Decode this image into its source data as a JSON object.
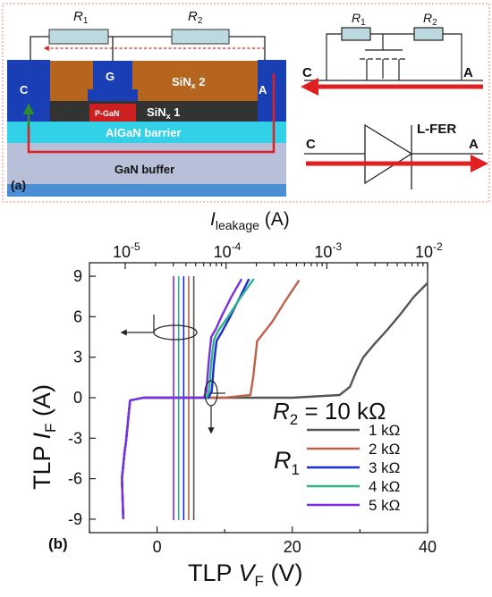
{
  "panel_a": {
    "label": "(a)",
    "device": {
      "r1": "R",
      "r1_sub": "1",
      "r2": "R",
      "r2_sub": "2",
      "cathode": "C",
      "anode": "A",
      "gate": "G",
      "sinx2_main": "SiN",
      "sinx2_sub": "x",
      "sinx2_num": " 2",
      "sinx1_main": "SiN",
      "sinx1_sub": "x",
      "sinx1_num": " 1",
      "pgan": "P-GaN",
      "algan": "AlGaN barrier",
      "gan": "GaN buffer",
      "colors": {
        "electrode": "#1a3fb4",
        "sinx2": "#b5651d",
        "sinx1": "#333333",
        "pgan": "#cc1f1f",
        "algan": "#33d1e8",
        "gan": "#b8bfd8",
        "substrate": "#4a8fd6",
        "current": "#e02020",
        "current_up": "#2e8b2e"
      }
    },
    "circuit": {
      "r1": "R",
      "r1_sub": "1",
      "r2": "R",
      "r2_sub": "2",
      "c": "C",
      "a": "A"
    },
    "diode": {
      "name": "L-FER",
      "c": "C",
      "a": "A"
    }
  },
  "panel_b": {
    "label": "(b)",
    "chart_data": {
      "type": "line",
      "xlabel_main": "TLP ",
      "xlabel_var": "V",
      "xlabel_sub": "F",
      "xlabel_unit": " (V)",
      "ylabel_main": "TLP ",
      "ylabel_var": "I",
      "ylabel_sub": "F",
      "ylabel_unit": " (A)",
      "top_axis_label_var": "I",
      "top_axis_label_sub": "leakage",
      "top_axis_label_unit": " (A)",
      "xlim": [
        -10,
        40
      ],
      "ylim": [
        -10,
        10
      ],
      "x_ticks": [
        "0",
        "20",
        "40"
      ],
      "y_ticks": [
        "9",
        "6",
        "3",
        "0",
        "-3",
        "-6",
        "-9"
      ],
      "top_ticks": [
        {
          "base": "10",
          "exp": "-5"
        },
        {
          "base": "10",
          "exp": "-4"
        },
        {
          "base": "10",
          "exp": "-3"
        },
        {
          "base": "10",
          "exp": "-2"
        }
      ],
      "legend_title_var": "R",
      "legend_title_sub": "2",
      "legend_title_value": " = 10 kΩ",
      "legend_group_var": "R",
      "legend_group_sub": "1",
      "series": [
        {
          "name": "1 kΩ",
          "color": "#555555",
          "x": [
            -5,
            -5.2,
            -4.8,
            -4.6,
            -4,
            -2,
            0,
            10,
            20,
            27,
            28.5,
            29.5,
            30.5,
            32,
            34,
            36,
            38,
            40
          ],
          "y": [
            -9,
            -6,
            -4,
            -3.3,
            -0.2,
            0,
            0,
            0,
            0,
            0.2,
            0.8,
            2,
            3,
            3.9,
            5,
            6.2,
            7.5,
            8.5
          ]
        },
        {
          "name": "2 kΩ",
          "color": "#c0604a",
          "x": [
            -5,
            -5.2,
            -4.8,
            -4.6,
            -4,
            -2,
            0,
            10,
            13.8,
            14.2,
            14.8,
            15.6,
            17,
            19,
            21
          ],
          "y": [
            -9,
            -6,
            -4,
            -3.3,
            -0.2,
            0,
            0,
            0,
            0.2,
            1.5,
            4.2,
            4.7,
            5.6,
            7.2,
            8.7
          ]
        },
        {
          "name": "3 kΩ",
          "color": "#1b2bd6",
          "x": [
            -5,
            -5.2,
            -4.8,
            -4.6,
            -4,
            -2,
            0,
            7.6,
            8.1,
            8.4,
            8.8,
            9.5,
            10.6,
            12,
            13.6
          ],
          "y": [
            -9,
            -6,
            -4,
            -3.3,
            -0.2,
            0,
            0,
            0,
            0.5,
            2.5,
            4.2,
            4.8,
            5.8,
            7.2,
            8.8
          ]
        },
        {
          "name": "4 kΩ",
          "color": "#2fb38a",
          "x": [
            -5,
            -5.2,
            -4.8,
            -4.6,
            -4,
            -2,
            0,
            7.3,
            7.7,
            8,
            8.4,
            9.1,
            10.5,
            12.3,
            14.3
          ],
          "y": [
            -9,
            -6,
            -4,
            -3.3,
            -0.2,
            0,
            0,
            0,
            0.5,
            2.5,
            4.3,
            5,
            6,
            7.4,
            8.8
          ]
        },
        {
          "name": "5 kΩ",
          "color": "#7b2fe0",
          "x": [
            -5,
            -5.2,
            -4.8,
            -4.6,
            -4,
            -2,
            0,
            6.9,
            7.3,
            7.6,
            8,
            8.7,
            9.6,
            11,
            12.5
          ],
          "y": [
            -9,
            -6,
            -4,
            -3.3,
            -0.2,
            0,
            0,
            0,
            0.5,
            2.5,
            4.5,
            5.1,
            6.1,
            7.5,
            8.8
          ]
        }
      ],
      "leakage_lines_log10_A": [
        -4.52,
        -4.47,
        -4.42,
        -4.37,
        -4.32
      ],
      "leakage_range": [
        -10,
        9
      ]
    }
  }
}
